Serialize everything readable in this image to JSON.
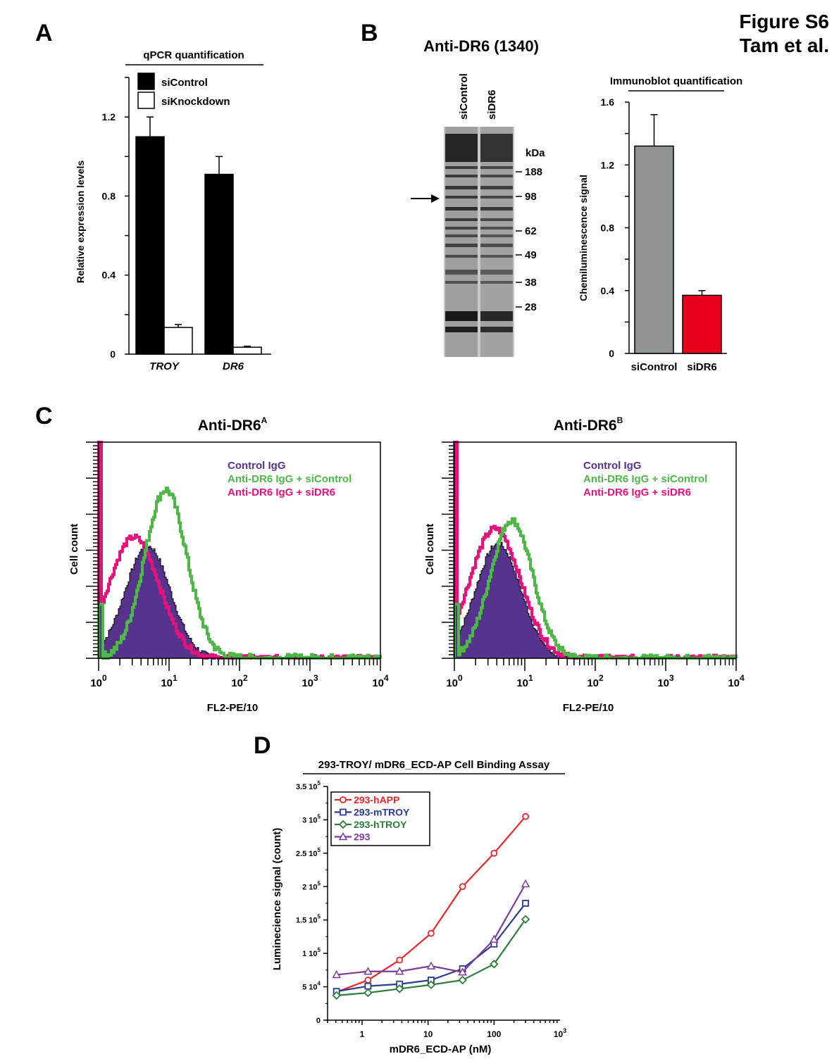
{
  "header": {
    "line1": "Figure S6",
    "line2": "Tam et al."
  },
  "panels": {
    "a": {
      "letter": "A"
    },
    "b": {
      "letter": "B"
    },
    "c": {
      "letter": "C"
    },
    "d": {
      "letter": "D"
    }
  },
  "colors": {
    "black": "#000000",
    "gray": "#8f9490",
    "red": "#e8001d",
    "purple": "#56338d",
    "green": "#4db748",
    "magenta": "#e5127b",
    "line_red": "#e5262b",
    "line_blue": "#2c3a8f",
    "line_green": "#2e7d3a",
    "line_purple": "#7d3c98"
  },
  "chart_data": [
    {
      "id": "A",
      "type": "bar",
      "title": "qPCR quantification",
      "ylabel": "Relative expression levels",
      "categories": [
        "TROY",
        "DR6"
      ],
      "ytick_labels": [
        "0",
        "0.4",
        "0.8",
        "1.2"
      ],
      "yticks": [
        0,
        0.4,
        0.8,
        1.2
      ],
      "ylim": [
        0,
        1.4
      ],
      "series": [
        {
          "name": "siControl",
          "values": [
            1.1,
            0.91
          ],
          "errors": [
            0.1,
            0.09
          ],
          "color": "#000000"
        },
        {
          "name": "siKnockdown",
          "values": [
            0.135,
            0.035
          ],
          "errors": [
            0.015,
            0.005
          ],
          "color": "#ffffff"
        }
      ]
    },
    {
      "id": "B-blot",
      "type": "other",
      "title": "Anti-DR6 (1340)",
      "lanes": [
        "siControl",
        "siDR6"
      ],
      "marker_unit": "kDa",
      "markers": [
        "188",
        "98",
        "62",
        "49",
        "38",
        "28"
      ]
    },
    {
      "id": "B",
      "type": "bar",
      "title": "Immunoblot quantification",
      "ylabel": "Chemiluminescence signal",
      "categories": [
        "siControl",
        "siDR6"
      ],
      "ytick_labels": [
        "0",
        "0.4",
        "0.8",
        "1.2",
        "1.6"
      ],
      "yticks": [
        0,
        0.4,
        0.8,
        1.2,
        1.6
      ],
      "ylim": [
        0,
        1.6
      ],
      "values": [
        1.32,
        0.37
      ],
      "errors": [
        0.2,
        0.03
      ],
      "colors": [
        "#8f9490",
        "#e8001d"
      ]
    },
    {
      "id": "C-left",
      "type": "area",
      "title": "Anti-DR6",
      "title_sup": "A",
      "xlabel": "FL2-PE/10",
      "ylabel": "Cell count",
      "x_scale": "log",
      "xlim": [
        1,
        10000
      ],
      "xtick_bases": [
        "10",
        "10",
        "10",
        "10",
        "10"
      ],
      "xtick_exps": [
        "0",
        "1",
        "2",
        "3",
        "4"
      ],
      "series": [
        {
          "name": "Control IgG",
          "color": "#56338d",
          "center": 5.0,
          "peak": 0.52
        },
        {
          "name": "Anti-DR6 IgG + siControl",
          "color": "#4db748",
          "center": 9.0,
          "peak": 0.78
        },
        {
          "name": "Anti-DR6 IgG + siDR6",
          "color": "#e5127b",
          "center": 3.2,
          "peak": 0.56
        }
      ]
    },
    {
      "id": "C-right",
      "type": "area",
      "title": "Anti-DR6",
      "title_sup": "B",
      "xlabel": "FL2-PE/10",
      "ylabel": "Cell count",
      "x_scale": "log",
      "xlim": [
        1,
        10000
      ],
      "xtick_bases": [
        "10",
        "10",
        "10",
        "10",
        "10"
      ],
      "xtick_exps": [
        "0",
        "1",
        "2",
        "3",
        "4"
      ],
      "series": [
        {
          "name": "Control IgG",
          "color": "#56338d",
          "center": 4.2,
          "peak": 0.53
        },
        {
          "name": "Anti-DR6 IgG + siControl",
          "color": "#4db748",
          "center": 6.5,
          "peak": 0.64
        },
        {
          "name": "Anti-DR6 IgG + siDR6",
          "color": "#e5127b",
          "center": 3.8,
          "peak": 0.6
        }
      ]
    },
    {
      "id": "D",
      "type": "line",
      "title": "293-TROY/ mDR6_ECD-AP Cell Binding Assay",
      "xlabel": "mDR6_ECD-AP (nM)",
      "ylabel": "Luminecience signal (count)",
      "x_scale": "log",
      "xlim": [
        0.3,
        1000
      ],
      "ylim": [
        0,
        350000
      ],
      "xtick_labels": [
        "1",
        "10",
        "100",
        "10"
      ],
      "xtick_last_sup": "3",
      "ytick_labels": [
        {
          "base": "0",
          "exp": ""
        },
        {
          "base": "5 10",
          "exp": "4"
        },
        {
          "base": "1 10",
          "exp": "5"
        },
        {
          "base": "1.5 10",
          "exp": "5"
        },
        {
          "base": "2 10",
          "exp": "5"
        },
        {
          "base": "2.5 10",
          "exp": "5"
        },
        {
          "base": "3 10",
          "exp": "5"
        },
        {
          "base": "3.5 10",
          "exp": "5"
        }
      ],
      "x": [
        0.41,
        1.23,
        3.7,
        11.1,
        33.3,
        100,
        300
      ],
      "series": [
        {
          "name": "293-hAPP",
          "marker": "circle",
          "color": "#e5262b",
          "values": [
            42000,
            60000,
            90000,
            130000,
            200000,
            250000,
            305000
          ]
        },
        {
          "name": "293-mTROY",
          "marker": "square",
          "color": "#2c3a8f",
          "values": [
            43000,
            51000,
            54000,
            60000,
            77000,
            114000,
            175000
          ]
        },
        {
          "name": "293-hTROY",
          "marker": "diamond",
          "color": "#2e7d3a",
          "values": [
            37000,
            41000,
            47000,
            53000,
            60000,
            84000,
            151000
          ]
        },
        {
          "name": "293",
          "marker": "triangle",
          "color": "#7d3c98",
          "values": [
            68000,
            73000,
            73000,
            81000,
            72000,
            121000,
            204000
          ]
        }
      ]
    }
  ]
}
